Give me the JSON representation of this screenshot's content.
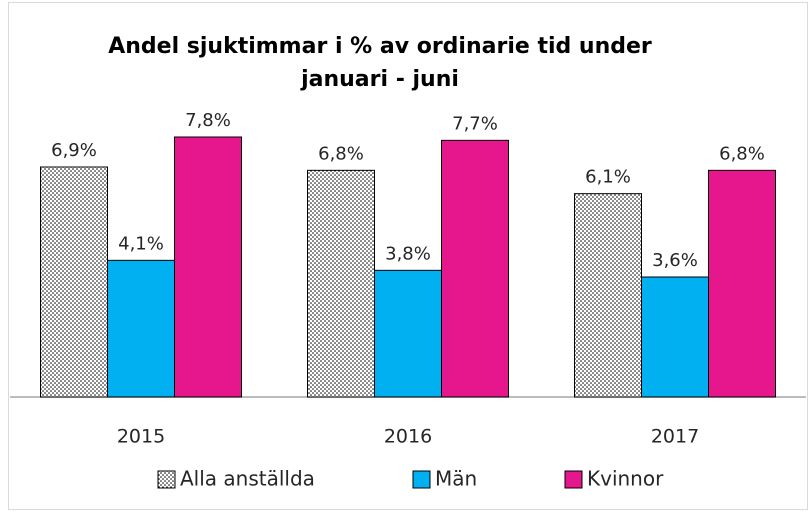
{
  "chart_data": {
    "type": "bar",
    "title": [
      "Andel sjuktimmar i % av ordinarie tid under",
      "januari - juni"
    ],
    "categories": [
      "2015",
      "2016",
      "2017"
    ],
    "series": [
      {
        "name": "Alla anställda",
        "color": "#ffffff",
        "pattern": "dots",
        "values": [
          6.9,
          6.8,
          6.1
        ],
        "value_labels": [
          "6,9%",
          "6,8%",
          "6,1%"
        ]
      },
      {
        "name": "Män",
        "color": "#00b0f0",
        "values": [
          4.1,
          3.8,
          3.6
        ],
        "value_labels": [
          "4,1%",
          "3,8%",
          "3,6%"
        ]
      },
      {
        "name": "Kvinnor",
        "color": "#e6168c",
        "values": [
          7.8,
          7.7,
          6.8
        ],
        "value_labels": [
          "7,8%",
          "7,7%",
          "6,8%"
        ]
      }
    ]
  }
}
